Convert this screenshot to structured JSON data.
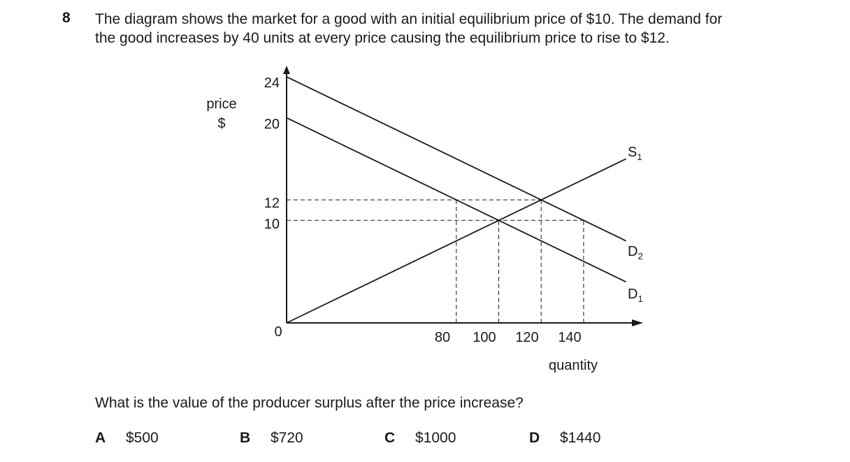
{
  "question": {
    "number": "8",
    "text_lines": [
      "The diagram shows the market for a good with an initial equilibrium price of $10. The demand for",
      "the good increases by 40 units at every price causing the equilibrium price to rise to $12."
    ],
    "prompt": "What is the value of the producer surplus after the price increase?"
  },
  "diagram": {
    "y_label_line1": "price",
    "y_label_line2": "$",
    "x_label": "quantity",
    "origin_label": "0",
    "y_ticks": [
      "24",
      "20",
      "12",
      "10"
    ],
    "x_ticks": [
      "80",
      "100",
      "120",
      "140"
    ],
    "curve_labels": {
      "supply": {
        "letter": "S",
        "sub": "1"
      },
      "demand_new": {
        "letter": "D",
        "sub": "2"
      },
      "demand_old": {
        "letter": "D",
        "sub": "1"
      }
    }
  },
  "chart_data": {
    "type": "line",
    "xlabel": "quantity",
    "ylabel": "price $",
    "x_ticks": [
      80,
      100,
      120,
      140
    ],
    "y_ticks": [
      10,
      12,
      20,
      24
    ],
    "series": [
      {
        "name": "S1",
        "points": [
          [
            0,
            0
          ],
          [
            160,
            16
          ]
        ]
      },
      {
        "name": "D1",
        "points": [
          [
            0,
            20
          ],
          [
            160,
            4
          ]
        ]
      },
      {
        "name": "D2",
        "points": [
          [
            0,
            24
          ],
          [
            160,
            8
          ]
        ]
      }
    ],
    "reference_lines": [
      {
        "from": [
          0,
          12
        ],
        "to": [
          120,
          12
        ]
      },
      {
        "from": [
          0,
          10
        ],
        "to": [
          140,
          10
        ]
      },
      {
        "from": [
          80,
          0
        ],
        "to": [
          80,
          12
        ]
      },
      {
        "from": [
          100,
          0
        ],
        "to": [
          100,
          10
        ]
      },
      {
        "from": [
          120,
          0
        ],
        "to": [
          120,
          12
        ]
      },
      {
        "from": [
          140,
          0
        ],
        "to": [
          140,
          10
        ]
      }
    ]
  },
  "options": [
    {
      "letter": "A",
      "value": "$500"
    },
    {
      "letter": "B",
      "value": "$720"
    },
    {
      "letter": "C",
      "value": "$1000"
    },
    {
      "letter": "D",
      "value": "$1440"
    }
  ]
}
